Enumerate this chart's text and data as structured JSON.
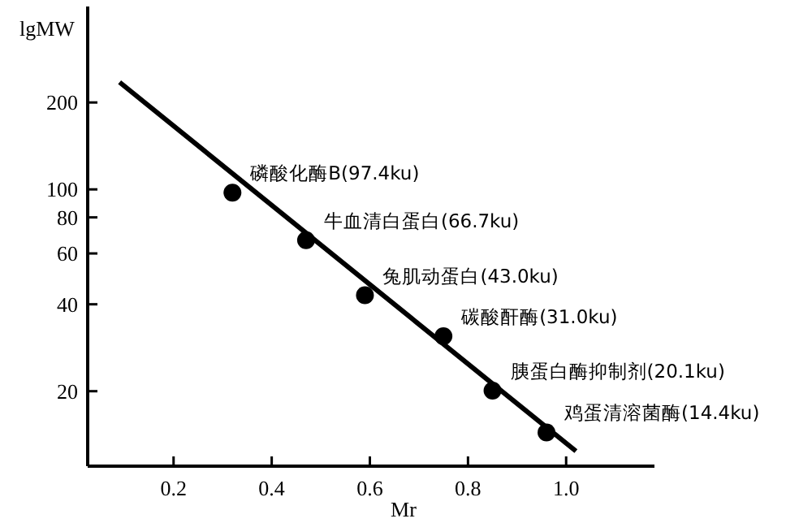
{
  "chart_data": {
    "type": "scatter",
    "xlabel": "Mr",
    "ylabel": "lgMW",
    "log": "y",
    "xlim": [
      0.025,
      1.18
    ],
    "ylim": [
      11,
      430
    ],
    "xticks": [
      0.2,
      0.4,
      0.6,
      0.8,
      {
        "value": 1,
        "label": "1.0"
      }
    ],
    "yticks": [
      20,
      40,
      60,
      80,
      100,
      200
    ],
    "grid": false,
    "series": [
      {
        "color": "#000000",
        "marker": "circle",
        "x": [
          0.32,
          0.47,
          0.59,
          0.75,
          0.85,
          0.96
        ],
        "values": [
          97.4,
          66.7,
          43.0,
          31.0,
          20.1,
          14.4
        ]
      },
      {
        "type": "line",
        "color": "#000000",
        "marker": "none",
        "line_style": "solid",
        "x": [
          0.09,
          1.02
        ],
        "values": [
          235,
          12.4
        ]
      }
    ],
    "annotations": [
      {
        "text": "磷酸化酶B(97.4ku)",
        "x": 0.32,
        "y": 97.4
      },
      {
        "text": "牛血清白蛋白(66.7ku)",
        "x": 0.47,
        "y": 66.7
      },
      {
        "text": "兔肌动蛋白(43.0ku)",
        "x": 0.59,
        "y": 43.0
      },
      {
        "text": "碳酸酐酶(31.0ku)",
        "x": 0.75,
        "y": 31.0
      },
      {
        "text": "胰蛋白酶抑制剂(20.1ku)",
        "x": 0.85,
        "y": 20.1
      },
      {
        "text": "鸡蛋清溶菌酶(14.4ku)",
        "x": 0.96,
        "y": 14.4
      }
    ]
  }
}
